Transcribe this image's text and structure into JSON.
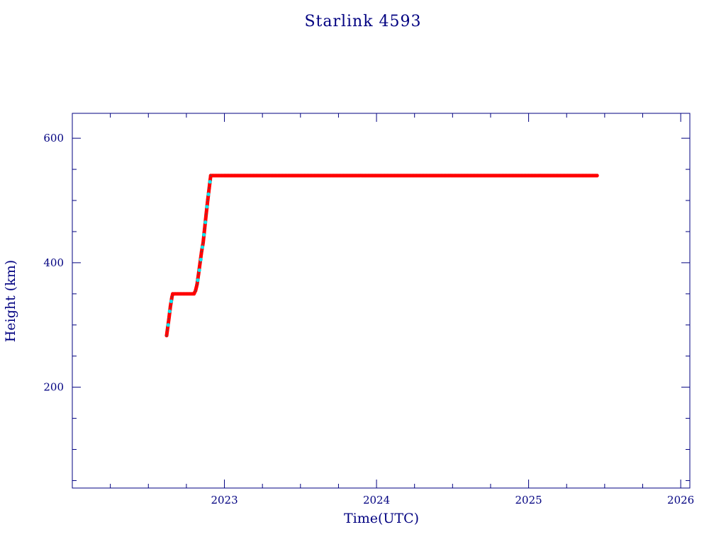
{
  "chart_data": {
    "type": "scatter",
    "title": "Starlink 4593",
    "xlabel": "Time(UTC)",
    "ylabel": "Height (km)",
    "xlim": [
      2022.0,
      2026.06
    ],
    "ylim": [
      38,
      640
    ],
    "x_ticks": [
      {
        "value": 2023,
        "label": "2023"
      },
      {
        "value": 2024,
        "label": "2024"
      },
      {
        "value": 2025,
        "label": "2025"
      },
      {
        "value": 2026,
        "label": "2026"
      }
    ],
    "y_ticks": [
      {
        "value": 200,
        "label": "200"
      },
      {
        "value": 400,
        "label": "400"
      },
      {
        "value": 600,
        "label": "600"
      }
    ],
    "grid": false,
    "colors": {
      "axis": "#000080",
      "primary_series": "#ff0000",
      "secondary_series": "#00e5ee",
      "marker_core": "#555555"
    },
    "series": [
      {
        "color": "#ff0000",
        "points": [
          [
            2022.62,
            283
          ],
          [
            2022.625,
            292
          ],
          [
            2022.635,
            310
          ],
          [
            2022.645,
            330
          ],
          [
            2022.655,
            345
          ],
          [
            2022.66,
            350
          ],
          [
            2022.68,
            350
          ],
          [
            2022.7,
            350
          ],
          [
            2022.72,
            350
          ],
          [
            2022.74,
            350
          ],
          [
            2022.76,
            350
          ],
          [
            2022.78,
            350
          ],
          [
            2022.8,
            350
          ],
          [
            2022.81,
            355
          ],
          [
            2022.82,
            365
          ],
          [
            2022.83,
            382
          ],
          [
            2022.84,
            400
          ],
          [
            2022.85,
            418
          ],
          [
            2022.86,
            432
          ],
          [
            2022.87,
            455
          ],
          [
            2022.88,
            478
          ],
          [
            2022.89,
            500
          ],
          [
            2022.9,
            520
          ],
          [
            2022.91,
            540
          ],
          [
            2022.95,
            540
          ],
          [
            2023.0,
            540
          ],
          [
            2023.1,
            540
          ],
          [
            2023.2,
            540
          ],
          [
            2023.3,
            540
          ],
          [
            2023.4,
            540
          ],
          [
            2023.5,
            540
          ],
          [
            2023.6,
            540
          ],
          [
            2023.7,
            540
          ],
          [
            2023.8,
            540
          ],
          [
            2023.9,
            540
          ],
          [
            2024.0,
            540
          ],
          [
            2024.1,
            540
          ],
          [
            2024.2,
            540
          ],
          [
            2024.3,
            540
          ],
          [
            2024.4,
            540
          ],
          [
            2024.5,
            540
          ],
          [
            2024.6,
            540
          ],
          [
            2024.7,
            540
          ],
          [
            2024.8,
            540
          ],
          [
            2024.9,
            540
          ],
          [
            2025.0,
            540
          ],
          [
            2025.1,
            540
          ],
          [
            2025.2,
            540
          ],
          [
            2025.3,
            540
          ],
          [
            2025.4,
            540
          ],
          [
            2025.45,
            540
          ]
        ]
      },
      {
        "color": "#00e5ee",
        "points": [
          [
            2022.63,
            300
          ],
          [
            2022.64,
            322
          ],
          [
            2022.65,
            338
          ],
          [
            2022.825,
            372
          ],
          [
            2022.835,
            388
          ],
          [
            2022.845,
            405
          ],
          [
            2022.855,
            425
          ],
          [
            2022.865,
            445
          ],
          [
            2022.875,
            465
          ],
          [
            2022.885,
            490
          ],
          [
            2022.895,
            510
          ],
          [
            2022.905,
            530
          ]
        ]
      }
    ]
  }
}
